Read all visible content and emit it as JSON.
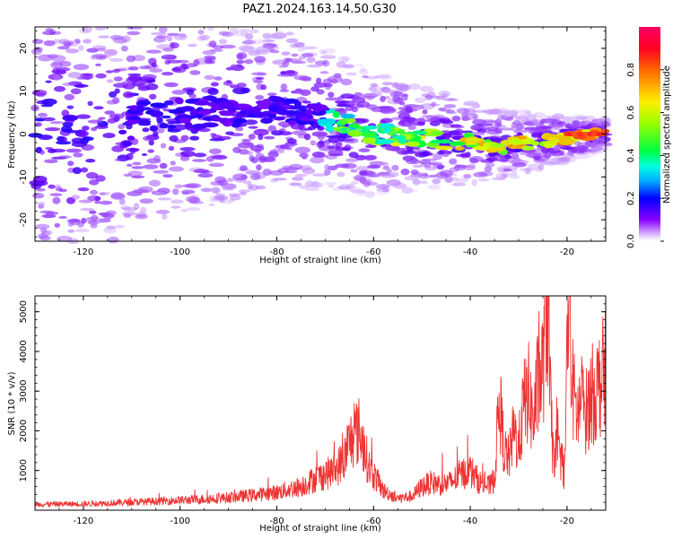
{
  "title": "PAZ1.2024.163.14.50.G30",
  "chart_data": [
    {
      "type": "heatmap",
      "xlabel": "Height of straight line (km)",
      "ylabel": "Frequency (Hz)",
      "xlim": [
        -130,
        -12
      ],
      "ylim": [
        -25,
        25
      ],
      "xticks": [
        -120,
        -100,
        -80,
        -60,
        -40,
        -20
      ],
      "yticks": [
        -20,
        -10,
        0,
        10,
        20
      ],
      "colorbar": {
        "label": "Normalized spectral amplitude",
        "range": [
          0,
          1
        ],
        "ticks": [
          0.0,
          0.2,
          0.4,
          0.6,
          0.8
        ],
        "colormap": "gist_rainbow"
      },
      "ridge": [
        {
          "x": -110,
          "y": 4
        },
        {
          "x": -100,
          "y": 5
        },
        {
          "x": -90,
          "y": 5
        },
        {
          "x": -80,
          "y": 6
        },
        {
          "x": -72,
          "y": 4
        },
        {
          "x": -65,
          "y": 2
        },
        {
          "x": -60,
          "y": 0
        },
        {
          "x": -50,
          "y": -1
        },
        {
          "x": -40,
          "y": -2
        },
        {
          "x": -34,
          "y": -3
        },
        {
          "x": -28,
          "y": -2
        },
        {
          "x": -20,
          "y": -1
        },
        {
          "x": -12,
          "y": 0
        }
      ]
    },
    {
      "type": "line",
      "xlabel": "Height of straight line (km)",
      "ylabel": "SNR (10 * v/v)",
      "xlim": [
        -130,
        -12
      ],
      "ylim": [
        0,
        5400
      ],
      "xticks": [
        -120,
        -100,
        -80,
        -60,
        -40,
        -20
      ],
      "yticks": [
        1000,
        2000,
        3000,
        4000,
        5000
      ],
      "line_color": "#ee3333",
      "series": [
        {
          "x": [
            -130,
            -120,
            -110,
            -100,
            -95,
            -90,
            -85,
            -80,
            -75,
            -72,
            -70,
            -68,
            -66,
            -65,
            -64,
            -63,
            -62,
            -61,
            -60,
            -58,
            -55,
            -52,
            -50,
            -48,
            -46,
            -44,
            -42,
            -40,
            -38,
            -36,
            -35,
            -34,
            -33,
            -32,
            -31,
            -30,
            -29,
            -28,
            -27,
            -26,
            -25,
            -24.5,
            -24,
            -23.5,
            -23,
            -22,
            -21,
            -20.5,
            -20,
            -19.5,
            -19,
            -18,
            -17,
            -16,
            -15,
            -14,
            -13,
            -12
          ],
          "values": [
            150,
            160,
            200,
            250,
            280,
            320,
            380,
            450,
            600,
            800,
            900,
            1000,
            1300,
            1700,
            1900,
            2000,
            1600,
            1100,
            900,
            500,
            300,
            350,
            600,
            700,
            650,
            700,
            900,
            1000,
            700,
            600,
            800,
            2800,
            1500,
            1300,
            2000,
            1600,
            2600,
            3000,
            2200,
            3200,
            3500,
            4800,
            5300,
            3000,
            1500,
            1400,
            1300,
            800,
            4000,
            5000,
            3200,
            2400,
            2700,
            2500,
            2900,
            3000,
            3300,
            3500
          ]
        }
      ]
    }
  ]
}
